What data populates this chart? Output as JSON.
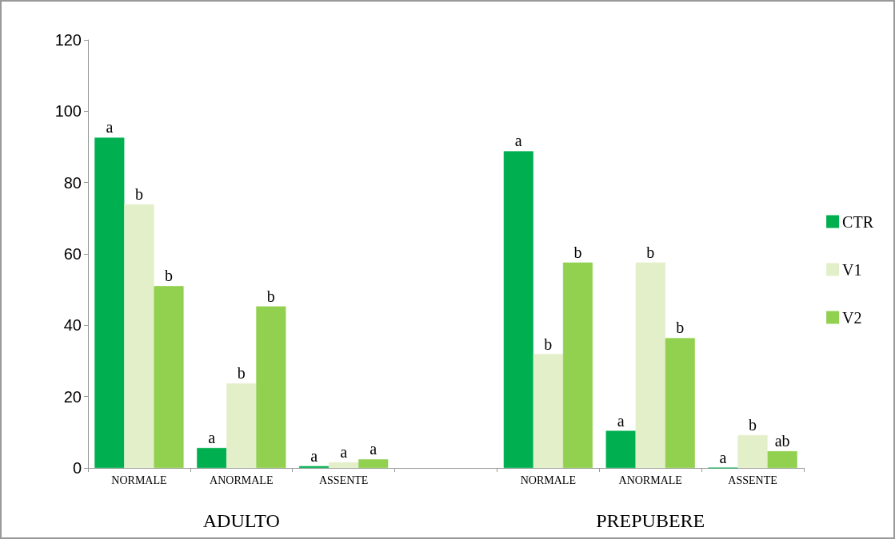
{
  "chart_data": {
    "type": "bar",
    "categories": [
      "NORMALE",
      "ANORMALE",
      "ASSENTE",
      null,
      "NORMALE",
      "ANORMALE",
      "ASSENTE"
    ],
    "series": [
      {
        "name": "CTR",
        "color": "#00b050",
        "values": [
          92.6,
          5.6,
          0.5,
          null,
          88.8,
          10.4,
          0
        ],
        "value_labels": [
          "a",
          "a",
          "a",
          null,
          "a",
          "a",
          "a"
        ]
      },
      {
        "name": "V1",
        "color": "#e2efc8",
        "values": [
          73.9,
          23.7,
          1.6,
          null,
          31.9,
          57.6,
          9.2
        ],
        "value_labels": [
          "b",
          "b",
          "a",
          null,
          "b",
          "b",
          "b"
        ]
      },
      {
        "name": "V2",
        "color": "#92d050",
        "values": [
          51.0,
          45.3,
          2.4,
          null,
          57.6,
          36.4,
          4.7
        ],
        "value_labels": [
          "b",
          "b",
          "a",
          null,
          "b",
          "b",
          "ab"
        ]
      }
    ],
    "ylim": [
      0,
      120
    ],
    "yticks": [
      0,
      20,
      40,
      60,
      80,
      100,
      120
    ],
    "grid": false,
    "legend": "right",
    "annotations": [
      "ADULTO",
      "PREPUBERE"
    ]
  }
}
